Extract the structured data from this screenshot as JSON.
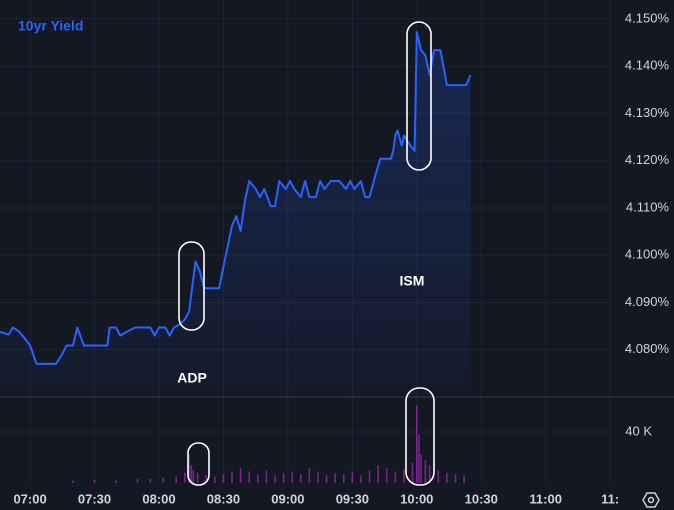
{
  "chart_data": [
    {
      "type": "line",
      "series": [
        {
          "name": "10yr Yield",
          "color": "#2962ff",
          "x": [
            "06:46",
            "06:50",
            "06:52",
            "06:55",
            "06:58",
            "07:00",
            "07:03",
            "07:12",
            "07:15",
            "07:17",
            "07:20",
            "07:22",
            "07:25",
            "07:36",
            "07:37",
            "07:40",
            "07:42",
            "07:45",
            "07:49",
            "07:56",
            "07:58",
            "08:00",
            "08:03",
            "08:05",
            "08:07",
            "08:10",
            "08:12",
            "08:14",
            "08:17",
            "08:19",
            "08:21",
            "08:28",
            "08:31",
            "08:34",
            "08:36",
            "08:38",
            "08:40",
            "08:42",
            "08:45",
            "08:47",
            "08:49",
            "08:52",
            "08:54",
            "08:56",
            "08:59",
            "09:01",
            "09:03",
            "09:06",
            "09:08",
            "09:10",
            "09:13",
            "09:15",
            "09:17",
            "09:20",
            "09:24",
            "09:27",
            "09:29",
            "09:31",
            "09:34",
            "09:36",
            "09:38",
            "09:41",
            "09:43",
            "09:48",
            "09:49",
            "09:50",
            "09:51",
            "09:53",
            "09:54",
            "09:57",
            "09:59",
            "10:00",
            "10:02",
            "10:04",
            "10:06",
            "10:08",
            "10:11",
            "10:14",
            "10:23",
            "10:25"
          ],
          "values": [
            4.0838,
            4.0832,
            4.0847,
            4.0838,
            4.0821,
            4.0809,
            4.077,
            4.077,
            4.0791,
            4.0809,
            4.0809,
            4.0847,
            4.0809,
            4.0809,
            4.0847,
            4.0847,
            4.083,
            4.0838,
            4.0847,
            4.0847,
            4.083,
            4.0847,
            4.0847,
            4.083,
            4.0847,
            4.0855,
            4.0864,
            4.0881,
            4.0987,
            4.0966,
            4.093,
            4.093,
            4.0998,
            4.1062,
            4.1083,
            4.1051,
            4.1115,
            4.1157,
            4.114,
            4.1123,
            4.114,
            4.1104,
            4.1104,
            4.1157,
            4.114,
            4.1157,
            4.114,
            4.1123,
            4.1157,
            4.1123,
            4.1123,
            4.1157,
            4.114,
            4.1157,
            4.1157,
            4.114,
            4.1157,
            4.114,
            4.1157,
            4.1123,
            4.1123,
            4.1174,
            4.1204,
            4.1204,
            4.1221,
            4.1253,
            4.1264,
            4.1232,
            4.1253,
            4.1232,
            4.1221,
            4.1472,
            4.1434,
            4.1423,
            4.1381,
            4.1434,
            4.1434,
            4.136,
            4.136,
            4.1381
          ]
        }
      ],
      "xlim": [
        "06:46",
        "11:29"
      ],
      "xticks": [
        "07:00",
        "07:30",
        "08:00",
        "08:30",
        "09:00",
        "09:30",
        "10:00",
        "10:30",
        "11:00",
        {
          "value": "11:30",
          "label": "11:"
        }
      ],
      "ylim": [
        4.07,
        4.154
      ],
      "yticks": [
        {
          "value": 4.08,
          "label": "4.080%"
        },
        {
          "value": 4.09,
          "label": "4.090%"
        },
        {
          "value": 4.1,
          "label": "4.100%"
        },
        {
          "value": 4.11,
          "label": "4.110%"
        },
        {
          "value": 4.12,
          "label": "4.120%"
        },
        {
          "value": 4.13,
          "label": "4.130%"
        },
        {
          "value": 4.14,
          "label": "4.140%"
        },
        {
          "value": 4.15,
          "label": "4.150%"
        }
      ],
      "grid": true,
      "annotations": [
        "ADP",
        "ISM"
      ]
    },
    {
      "type": "bar",
      "color": "#9c27b0",
      "x": [
        "07:20",
        "07:30",
        "07:40",
        "07:50",
        "07:56",
        "08:02",
        "08:08",
        "08:12",
        "08:14",
        "08:15",
        "08:16",
        "08:18",
        "08:22",
        "08:26",
        "08:30",
        "08:34",
        "08:38",
        "08:42",
        "08:46",
        "08:50",
        "08:54",
        "08:58",
        "09:02",
        "09:06",
        "09:10",
        "09:14",
        "09:18",
        "09:22",
        "09:26",
        "09:30",
        "09:34",
        "09:38",
        "09:42",
        "09:46",
        "09:50",
        "09:54",
        "09:58",
        "10:00",
        "10:01",
        "10:02",
        "10:04",
        "10:06",
        "10:10",
        "10:14",
        "10:18",
        "10:22"
      ],
      "values": [
        2000,
        2500,
        2000,
        3000,
        3500,
        4000,
        5000,
        8000,
        22000,
        14000,
        10000,
        8000,
        6000,
        5000,
        7000,
        9000,
        12000,
        9000,
        7000,
        10000,
        6000,
        8000,
        9000,
        7000,
        12000,
        9000,
        6000,
        8000,
        7000,
        9000,
        6000,
        10000,
        14000,
        12000,
        9000,
        11000,
        16000,
        61000,
        38000,
        22000,
        18000,
        14000,
        10000,
        8000,
        7000,
        6000
      ],
      "ylim": [
        0,
        67500
      ],
      "yticks": [
        {
          "value": 40000,
          "label": "40 K"
        }
      ]
    }
  ]
}
